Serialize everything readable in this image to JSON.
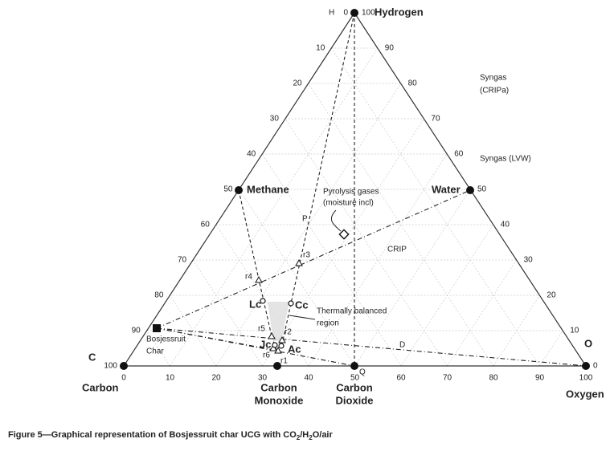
{
  "corners": {
    "h_short": "H",
    "hydrogen": "Hydrogen",
    "c_short": "C",
    "carbon": "Carbon",
    "o_short": "O",
    "oxygen": "Oxygen"
  },
  "species": {
    "methane": "Methane",
    "water": "Water",
    "carbon_monoxide": [
      "Carbon",
      "Monoxide"
    ],
    "carbon_dioxide": [
      "Carbon",
      "Dioxide"
    ],
    "char": [
      "Bosjessruit",
      "Char"
    ]
  },
  "axes": {
    "left_ticks": [
      0,
      10,
      20,
      30,
      40,
      50,
      60,
      70,
      80,
      90,
      100
    ],
    "right_ticks": [
      100,
      90,
      80,
      70,
      60,
      50,
      40,
      30,
      20,
      10,
      0
    ],
    "bottom_ticks": [
      0,
      10,
      20,
      30,
      40,
      50,
      60,
      70,
      80,
      90,
      100
    ]
  },
  "labels": {
    "syngas_cripa": [
      "Syngas",
      "(CRIPa)"
    ],
    "syngas_lvw": "Syngas (LVW)",
    "crip": "CRIP",
    "pyrolysis": [
      "Pyrolysis gases",
      "(moisture incl)"
    ],
    "thermal": [
      "Thermally balanced",
      "region"
    ],
    "p": "P",
    "q": "Q",
    "d": "D"
  },
  "points": {
    "r1": "r1",
    "r2": "r2",
    "r3": "r3",
    "r4": "r4",
    "r5": "r5",
    "r6": "r6",
    "lc": "Lc",
    "cc": "Cc",
    "jc": "Jc",
    "ac": "Ac"
  },
  "caption": [
    "Figure 5—Graphical representation of Bosjessruit char UCG with CO",
    "2",
    "/H",
    "2",
    "O/air"
  ]
}
